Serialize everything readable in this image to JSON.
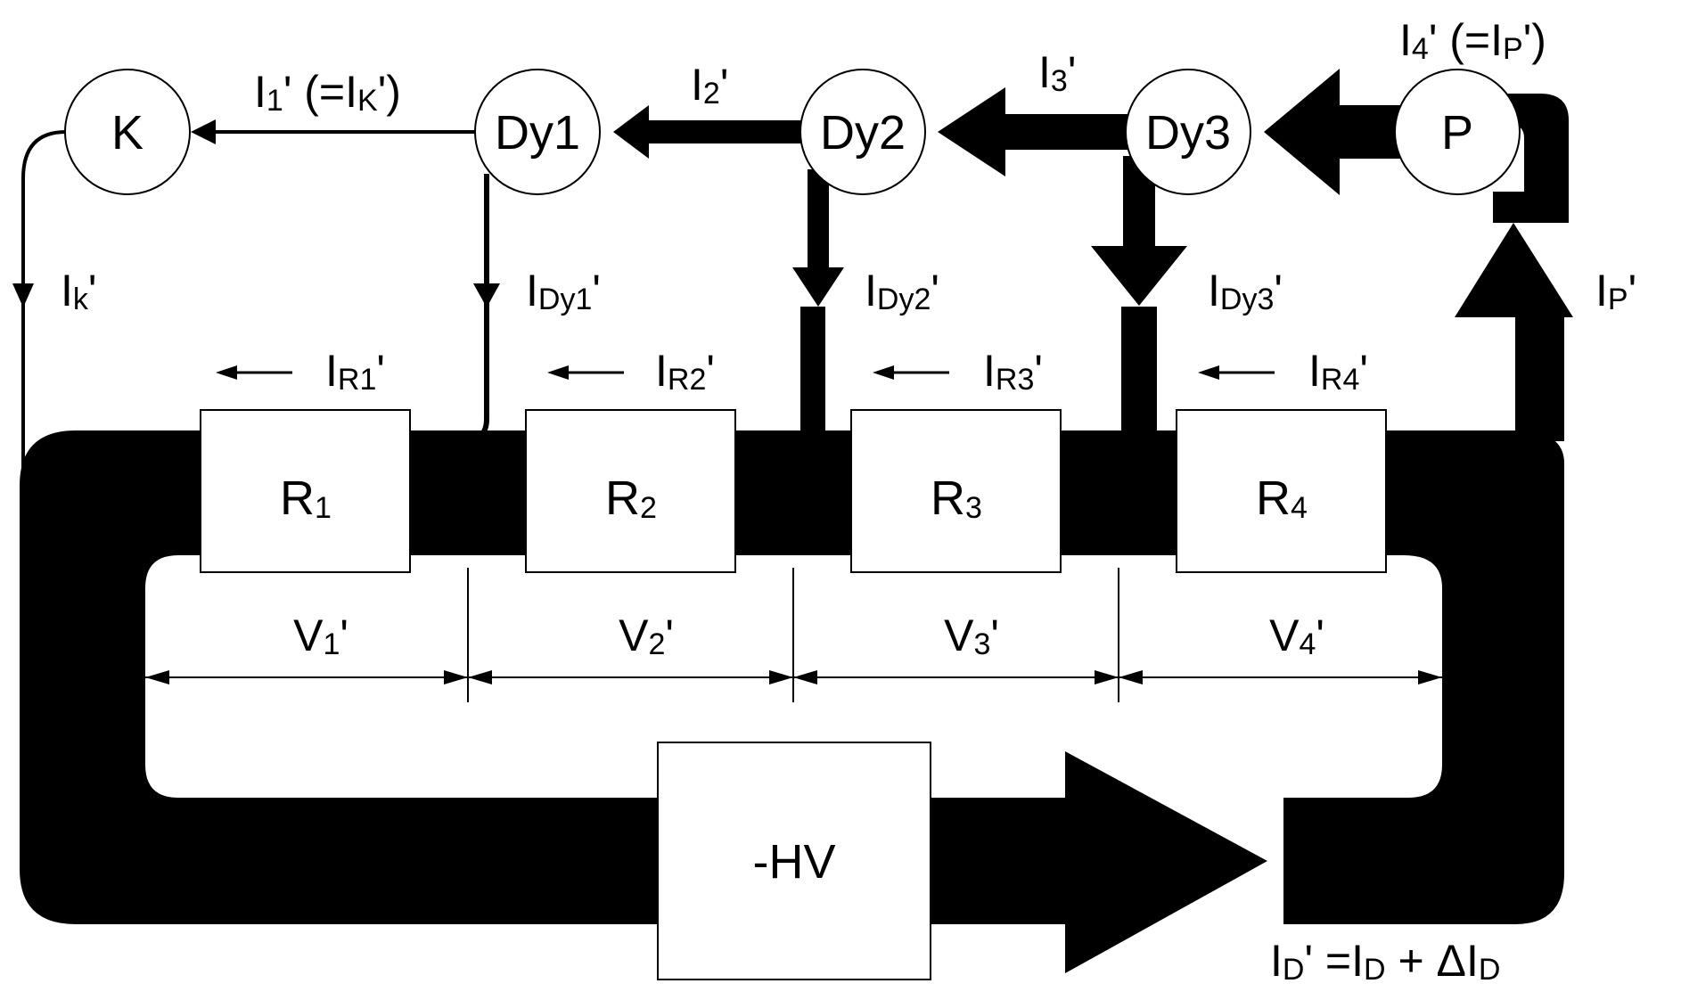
{
  "colors": {
    "flow": "#000000",
    "background": "#ffffff"
  },
  "nodes": {
    "k": {
      "label": "K"
    },
    "dy1": {
      "label": "Dy1"
    },
    "dy2": {
      "label": "Dy2"
    },
    "dy3": {
      "label": "Dy3"
    },
    "p": {
      "label": "P"
    }
  },
  "resistors": {
    "r1": {
      "main": "R",
      "sub": "1"
    },
    "r2": {
      "main": "R",
      "sub": "2"
    },
    "r3": {
      "main": "R",
      "sub": "3"
    },
    "r4": {
      "main": "R",
      "sub": "4"
    }
  },
  "hv": {
    "label": "-HV"
  },
  "currents": {
    "i1": {
      "main": "I",
      "sub": "1",
      "suffix": "' (=I",
      "sub2": "K",
      "suffix2": "')"
    },
    "i2": {
      "main": "I",
      "sub": "2",
      "suffix": "'"
    },
    "i3": {
      "main": "I",
      "sub": "3",
      "suffix": "'"
    },
    "i4": {
      "main": "I",
      "sub": "4",
      "suffix": "' (=I",
      "sub2": "P",
      "suffix2": "')"
    },
    "ik": {
      "main": "I",
      "sub": "k",
      "suffix": "'"
    },
    "idy1": {
      "main": "I",
      "sub": "Dy1",
      "suffix": "'"
    },
    "idy2": {
      "main": "I",
      "sub": "Dy2",
      "suffix": "'"
    },
    "idy3": {
      "main": "I",
      "sub": "Dy3",
      "suffix": "'"
    },
    "ip": {
      "main": "I",
      "sub": "P",
      "suffix": "'"
    },
    "ir1": {
      "main": "I",
      "sub": "R1",
      "suffix": "'"
    },
    "ir2": {
      "main": "I",
      "sub": "R2",
      "suffix": "'"
    },
    "ir3": {
      "main": "I",
      "sub": "R3",
      "suffix": "'"
    },
    "ir4": {
      "main": "I",
      "sub": "R4",
      "suffix": "'"
    },
    "id": {
      "main": "I",
      "sub": "D",
      "suffix": "' =I",
      "sub2": "D",
      "suffix2": " + ΔI",
      "sub3": "D"
    }
  },
  "voltages": {
    "v1": {
      "main": "V",
      "sub": "1",
      "suffix": "'"
    },
    "v2": {
      "main": "V",
      "sub": "2",
      "suffix": "'"
    },
    "v3": {
      "main": "V",
      "sub": "3",
      "suffix": "'"
    },
    "v4": {
      "main": "V",
      "sub": "4",
      "suffix": "'"
    }
  }
}
